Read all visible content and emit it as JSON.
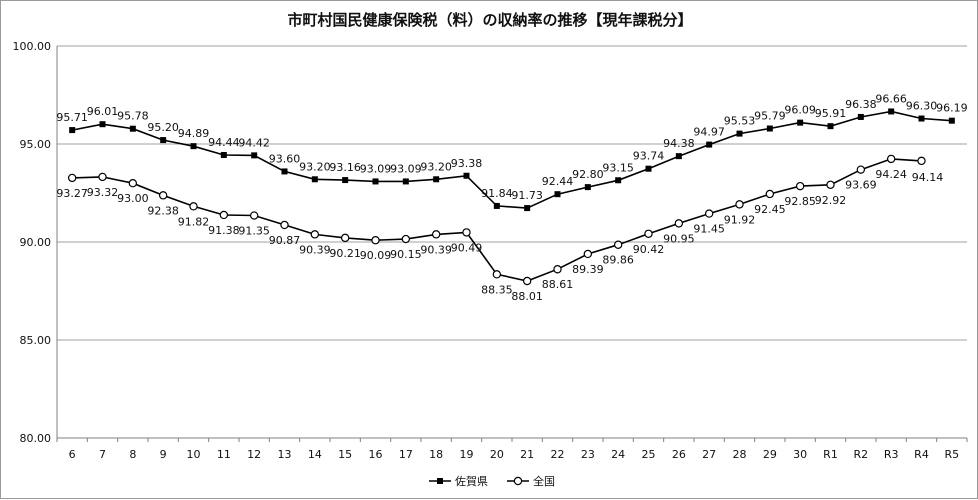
{
  "chart_data": {
    "type": "line",
    "title": "市町村国民健康保険税（料）の収納率の推移【現年課税分】",
    "categories": [
      "6",
      "7",
      "8",
      "9",
      "10",
      "11",
      "12",
      "13",
      "14",
      "15",
      "16",
      "17",
      "18",
      "19",
      "20",
      "21",
      "22",
      "23",
      "24",
      "25",
      "26",
      "27",
      "28",
      "29",
      "30",
      "R1",
      "R2",
      "R3",
      "R4",
      "R5"
    ],
    "ylim": [
      80,
      100
    ],
    "yticks": [
      "80.00",
      "85.00",
      "90.00",
      "95.00",
      "100.00"
    ],
    "grid": "horizontal",
    "legend_position": "bottom",
    "series": [
      {
        "name": "佐賀県",
        "marker": "filled-square",
        "color": "#000000",
        "values": [
          95.71,
          96.01,
          95.78,
          95.2,
          94.89,
          94.44,
          94.42,
          93.6,
          93.2,
          93.16,
          93.09,
          93.09,
          93.2,
          93.38,
          91.84,
          91.73,
          92.44,
          92.8,
          93.15,
          93.74,
          94.38,
          94.97,
          95.53,
          95.79,
          96.09,
          95.91,
          96.38,
          96.66,
          96.3,
          96.19
        ],
        "labels": [
          "95.71",
          "96.01",
          "95.78",
          "95.20",
          "94.89",
          "94.44",
          "94.42",
          "93.60",
          "93.20",
          "93.16",
          "93.09",
          "93.09",
          "93.20",
          "93.38",
          "91.84",
          "91.73",
          "92.44",
          "92.80",
          "93.15",
          "93.74",
          "94.38",
          "94.97",
          "95.53",
          "95.79",
          "96.09",
          "95.91",
          "96.38",
          "96.66",
          "96.30",
          "96.19"
        ]
      },
      {
        "name": "全国",
        "marker": "open-circle",
        "color": "#000000",
        "values": [
          93.27,
          93.32,
          93.0,
          92.38,
          91.82,
          91.38,
          91.35,
          90.87,
          90.39,
          90.21,
          90.09,
          90.15,
          90.39,
          90.49,
          88.35,
          88.01,
          88.61,
          89.39,
          89.86,
          90.42,
          90.95,
          91.45,
          91.92,
          92.45,
          92.85,
          92.92,
          93.69,
          94.24,
          94.14,
          null
        ],
        "labels": [
          "93.27",
          "93.32",
          "93.00",
          "92.38",
          "91.82",
          "91.38",
          "91.35",
          "90.87",
          "90.39",
          "90.21",
          "90.09",
          "90.15",
          "90.39",
          "90.49",
          "88.35",
          "88.01",
          "88.61",
          "89.39",
          "89.86",
          "90.42",
          "90.95",
          "91.45",
          "91.92",
          "92.45",
          "92.85",
          "92.92",
          "93.69",
          "94.24",
          "94.14",
          null
        ]
      }
    ]
  }
}
